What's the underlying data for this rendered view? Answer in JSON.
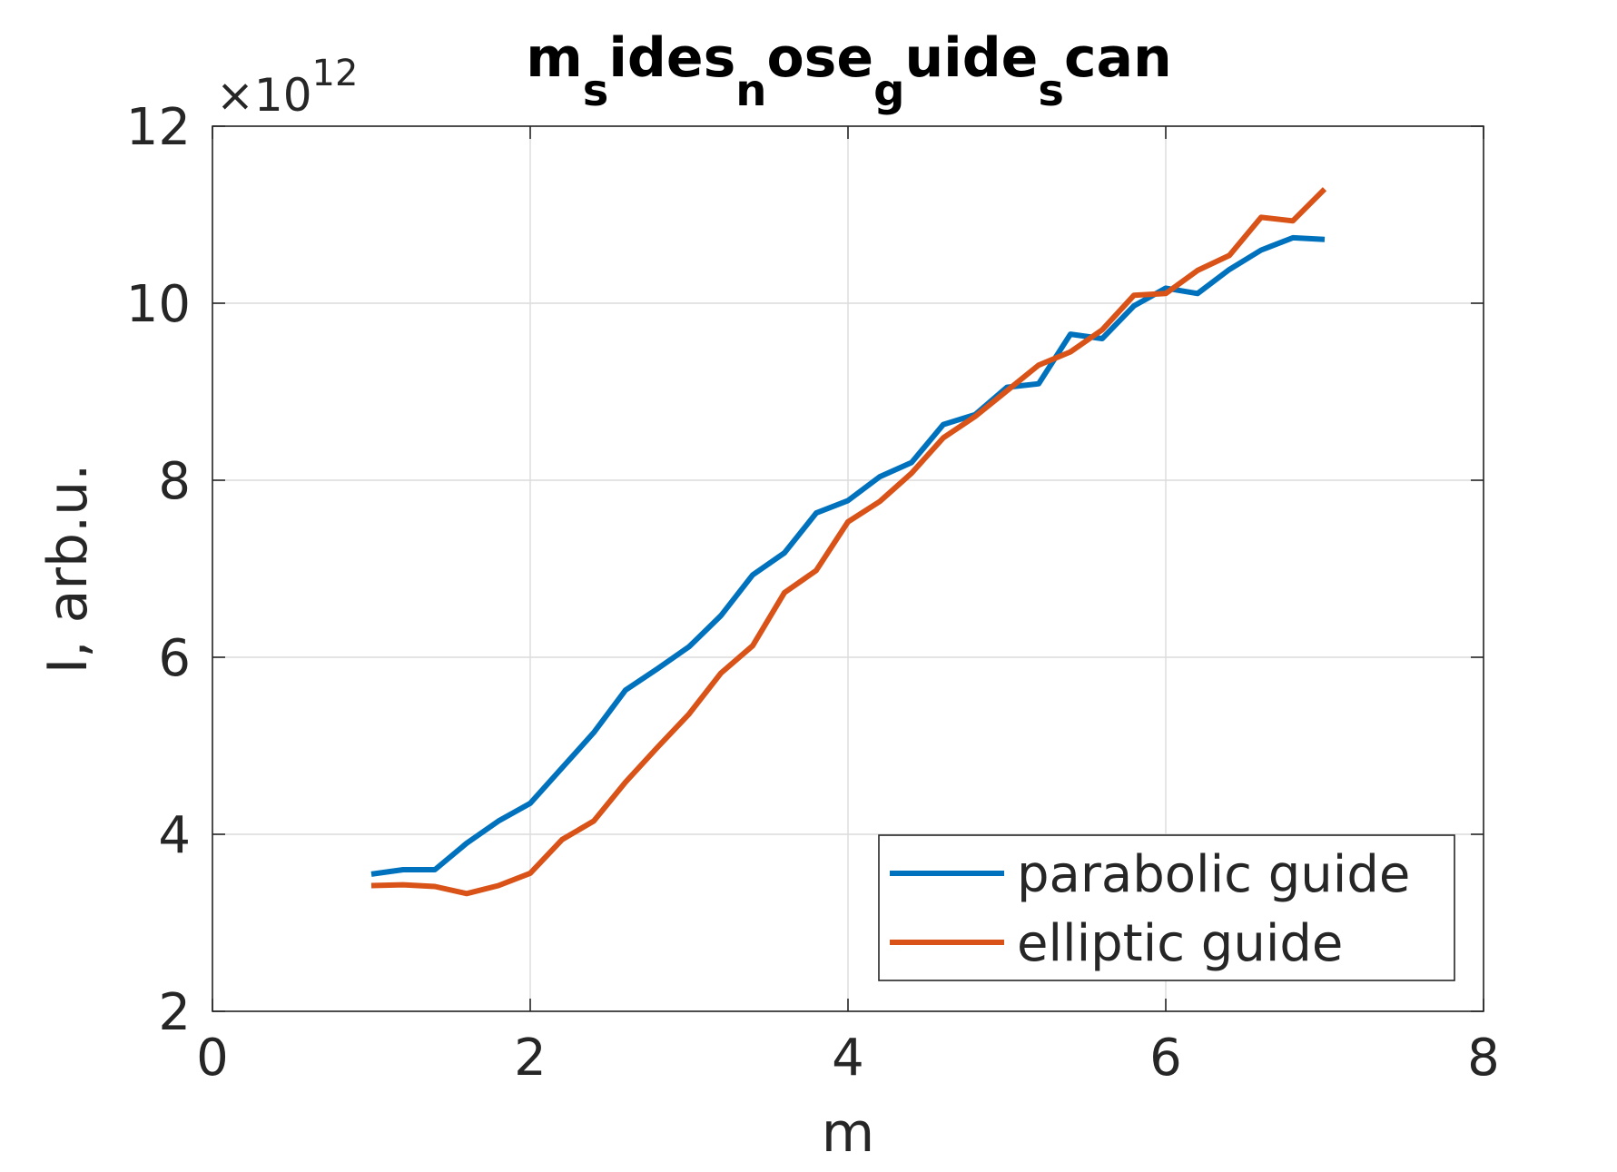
{
  "chart_data": {
    "type": "line",
    "title_parts": [
      {
        "text": "m",
        "sub": false
      },
      {
        "text": "s",
        "sub": true
      },
      {
        "text": "ides",
        "sub": false
      },
      {
        "text": "n",
        "sub": true
      },
      {
        "text": "ose",
        "sub": false
      },
      {
        "text": "g",
        "sub": true
      },
      {
        "text": "uide",
        "sub": false
      },
      {
        "text": "s",
        "sub": true
      },
      {
        "text": "can",
        "sub": false
      }
    ],
    "xlabel": "m",
    "ylabel": "I, arb.u.",
    "exponent_label": {
      "base": "×10",
      "power": "12"
    },
    "xlim": [
      0,
      8
    ],
    "ylim": [
      2,
      12
    ],
    "xticks": [
      0,
      2,
      4,
      6,
      8
    ],
    "yticks": [
      2,
      4,
      6,
      8,
      10,
      12
    ],
    "y_scale_multiplier": 1000000000000.0,
    "grid": true,
    "legend_position": "bottom-right",
    "x": [
      1.0,
      1.2,
      1.4,
      1.6,
      1.8,
      2.0,
      2.2,
      2.4,
      2.6,
      2.8,
      3.0,
      3.2,
      3.4,
      3.6,
      3.8,
      4.0,
      4.2,
      4.4,
      4.6,
      4.8,
      5.0,
      5.2,
      5.4,
      5.6,
      5.8,
      6.0,
      6.2,
      6.4,
      6.6,
      6.8,
      7.0
    ],
    "series": [
      {
        "name": "parabolic guide",
        "color": "#0072BD",
        "values": [
          3.55,
          3.6,
          3.6,
          3.9,
          4.15,
          4.35,
          4.75,
          5.15,
          5.63,
          5.87,
          6.12,
          6.47,
          6.93,
          7.18,
          7.63,
          7.77,
          8.04,
          8.2,
          8.63,
          8.74,
          9.05,
          9.09,
          9.65,
          9.6,
          9.97,
          10.17,
          10.11,
          10.38,
          10.6,
          10.74,
          10.72
        ]
      },
      {
        "name": "elliptic guide",
        "color": "#D95319",
        "values": [
          3.42,
          3.43,
          3.41,
          3.33,
          3.42,
          3.56,
          3.94,
          4.15,
          4.59,
          4.98,
          5.36,
          5.82,
          6.13,
          6.73,
          6.98,
          7.53,
          7.76,
          8.08,
          8.48,
          8.72,
          9.01,
          9.3,
          9.45,
          9.7,
          10.09,
          10.11,
          10.37,
          10.54,
          10.97,
          10.93,
          11.29
        ]
      }
    ]
  }
}
